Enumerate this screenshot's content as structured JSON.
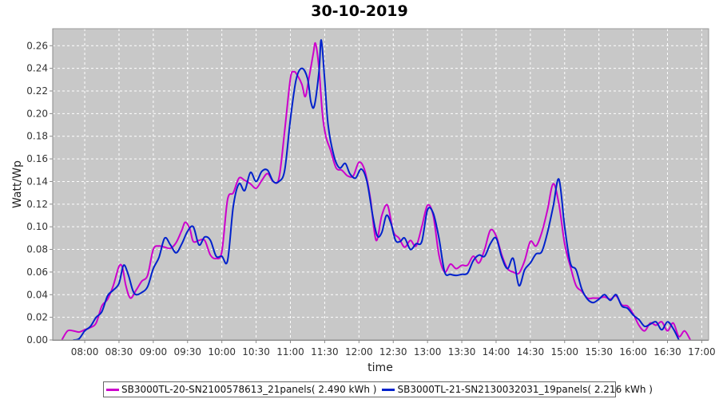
{
  "chart_data": {
    "type": "line",
    "title": "30-10-2019",
    "xlabel": "time",
    "ylabel": "Watt/Wp",
    "x_ticks": [
      "08:00",
      "08:30",
      "09:00",
      "09:30",
      "10:00",
      "10:30",
      "11:00",
      "11:30",
      "12:00",
      "12:30",
      "13:00",
      "13:30",
      "14:00",
      "14:30",
      "15:00",
      "15:30",
      "16:00",
      "16:30",
      "17:00"
    ],
    "y_ticks": [
      "0.00",
      "0.02",
      "0.04",
      "0.06",
      "0.08",
      "0.10",
      "0.12",
      "0.14",
      "0.16",
      "0.18",
      "0.20",
      "0.22",
      "0.24",
      "0.26"
    ],
    "xlim": [
      "07:32",
      "17:06"
    ],
    "ylim": [
      0,
      0.275
    ],
    "grid": true,
    "legend_position": "bottom",
    "background_color": "#c8c8c8",
    "series": [
      {
        "name": "SB3000TL-20-SN2100578613_21panels( 2.490 kWh )",
        "color": "#cc00cc",
        "points": [
          [
            "07:40",
            0.0
          ],
          [
            "07:45",
            0.008
          ],
          [
            "07:50",
            0.008
          ],
          [
            "07:55",
            0.007
          ],
          [
            "08:00",
            0.009
          ],
          [
            "08:05",
            0.011
          ],
          [
            "08:10",
            0.015
          ],
          [
            "08:15",
            0.03
          ],
          [
            "08:20",
            0.036
          ],
          [
            "08:25",
            0.048
          ],
          [
            "08:30",
            0.065
          ],
          [
            "08:33",
            0.064
          ],
          [
            "08:36",
            0.048
          ],
          [
            "08:40",
            0.037
          ],
          [
            "08:45",
            0.044
          ],
          [
            "08:50",
            0.052
          ],
          [
            "08:55",
            0.057
          ],
          [
            "09:00",
            0.08
          ],
          [
            "09:05",
            0.083
          ],
          [
            "09:10",
            0.082
          ],
          [
            "09:15",
            0.081
          ],
          [
            "09:20",
            0.086
          ],
          [
            "09:25",
            0.097
          ],
          [
            "09:28",
            0.104
          ],
          [
            "09:32",
            0.098
          ],
          [
            "09:35",
            0.087
          ],
          [
            "09:40",
            0.088
          ],
          [
            "09:45",
            0.088
          ],
          [
            "09:50",
            0.075
          ],
          [
            "09:55",
            0.072
          ],
          [
            "10:00",
            0.078
          ],
          [
            "10:05",
            0.124
          ],
          [
            "10:10",
            0.13
          ],
          [
            "10:15",
            0.143
          ],
          [
            "10:20",
            0.141
          ],
          [
            "10:25",
            0.138
          ],
          [
            "10:30",
            0.134
          ],
          [
            "10:35",
            0.141
          ],
          [
            "10:40",
            0.147
          ],
          [
            "10:45",
            0.14
          ],
          [
            "10:50",
            0.143
          ],
          [
            "10:55",
            0.185
          ],
          [
            "11:00",
            0.231
          ],
          [
            "11:03",
            0.237
          ],
          [
            "11:06",
            0.234
          ],
          [
            "11:10",
            0.226
          ],
          [
            "11:13",
            0.215
          ],
          [
            "11:16",
            0.23
          ],
          [
            "11:20",
            0.253
          ],
          [
            "11:22",
            0.262
          ],
          [
            "11:25",
            0.24
          ],
          [
            "11:28",
            0.2
          ],
          [
            "11:31",
            0.18
          ],
          [
            "11:35",
            0.168
          ],
          [
            "11:40",
            0.152
          ],
          [
            "11:45",
            0.15
          ],
          [
            "11:50",
            0.145
          ],
          [
            "11:55",
            0.145
          ],
          [
            "12:00",
            0.157
          ],
          [
            "12:05",
            0.15
          ],
          [
            "12:10",
            0.125
          ],
          [
            "12:15",
            0.088
          ],
          [
            "12:20",
            0.11
          ],
          [
            "12:25",
            0.119
          ],
          [
            "12:30",
            0.096
          ],
          [
            "12:35",
            0.09
          ],
          [
            "12:40",
            0.082
          ],
          [
            "12:45",
            0.088
          ],
          [
            "12:50",
            0.083
          ],
          [
            "12:55",
            0.1
          ],
          [
            "13:00",
            0.119
          ],
          [
            "13:05",
            0.11
          ],
          [
            "13:10",
            0.075
          ],
          [
            "13:15",
            0.06
          ],
          [
            "13:20",
            0.067
          ],
          [
            "13:25",
            0.063
          ],
          [
            "13:30",
            0.066
          ],
          [
            "13:35",
            0.066
          ],
          [
            "13:40",
            0.074
          ],
          [
            "13:45",
            0.068
          ],
          [
            "13:50",
            0.08
          ],
          [
            "13:55",
            0.097
          ],
          [
            "14:00",
            0.092
          ],
          [
            "14:05",
            0.075
          ],
          [
            "14:10",
            0.063
          ],
          [
            "14:15",
            0.06
          ],
          [
            "14:20",
            0.059
          ],
          [
            "14:25",
            0.07
          ],
          [
            "14:30",
            0.087
          ],
          [
            "14:35",
            0.083
          ],
          [
            "14:40",
            0.095
          ],
          [
            "14:45",
            0.115
          ],
          [
            "14:50",
            0.138
          ],
          [
            "14:55",
            0.12
          ],
          [
            "15:00",
            0.085
          ],
          [
            "15:05",
            0.065
          ],
          [
            "15:10",
            0.048
          ],
          [
            "15:15",
            0.043
          ],
          [
            "15:20",
            0.037
          ],
          [
            "15:25",
            0.037
          ],
          [
            "15:30",
            0.037
          ],
          [
            "15:35",
            0.038
          ],
          [
            "15:40",
            0.036
          ],
          [
            "15:45",
            0.039
          ],
          [
            "15:50",
            0.031
          ],
          [
            "15:55",
            0.03
          ],
          [
            "16:00",
            0.023
          ],
          [
            "16:05",
            0.013
          ],
          [
            "16:10",
            0.008
          ],
          [
            "16:15",
            0.015
          ],
          [
            "16:20",
            0.013
          ],
          [
            "16:25",
            0.016
          ],
          [
            "16:30",
            0.008
          ],
          [
            "16:35",
            0.015
          ],
          [
            "16:40",
            0.003
          ],
          [
            "16:45",
            0.008
          ],
          [
            "16:50",
            0.0
          ]
        ]
      },
      {
        "name": "SB3000TL-21-SN2130032031_19panels( 2.216 kWh )",
        "color": "#0022cc",
        "points": [
          [
            "07:50",
            0.0
          ],
          [
            "07:55",
            0.001
          ],
          [
            "08:00",
            0.008
          ],
          [
            "08:05",
            0.012
          ],
          [
            "08:10",
            0.02
          ],
          [
            "08:15",
            0.025
          ],
          [
            "08:20",
            0.039
          ],
          [
            "08:25",
            0.044
          ],
          [
            "08:30",
            0.05
          ],
          [
            "08:34",
            0.066
          ],
          [
            "08:38",
            0.058
          ],
          [
            "08:42",
            0.044
          ],
          [
            "08:45",
            0.04
          ],
          [
            "08:50",
            0.042
          ],
          [
            "08:55",
            0.047
          ],
          [
            "09:00",
            0.063
          ],
          [
            "09:05",
            0.073
          ],
          [
            "09:10",
            0.09
          ],
          [
            "09:15",
            0.084
          ],
          [
            "09:20",
            0.077
          ],
          [
            "09:25",
            0.085
          ],
          [
            "09:30",
            0.096
          ],
          [
            "09:35",
            0.1
          ],
          [
            "09:40",
            0.084
          ],
          [
            "09:45",
            0.091
          ],
          [
            "09:50",
            0.088
          ],
          [
            "09:55",
            0.074
          ],
          [
            "10:00",
            0.074
          ],
          [
            "10:05",
            0.07
          ],
          [
            "10:10",
            0.118
          ],
          [
            "10:15",
            0.138
          ],
          [
            "10:20",
            0.132
          ],
          [
            "10:25",
            0.148
          ],
          [
            "10:30",
            0.14
          ],
          [
            "10:35",
            0.149
          ],
          [
            "10:40",
            0.15
          ],
          [
            "10:45",
            0.14
          ],
          [
            "10:50",
            0.14
          ],
          [
            "10:55",
            0.15
          ],
          [
            "11:00",
            0.195
          ],
          [
            "11:05",
            0.23
          ],
          [
            "11:10",
            0.24
          ],
          [
            "11:15",
            0.231
          ],
          [
            "11:18",
            0.21
          ],
          [
            "11:21",
            0.207
          ],
          [
            "11:25",
            0.237
          ],
          [
            "11:27",
            0.265
          ],
          [
            "11:30",
            0.23
          ],
          [
            "11:33",
            0.19
          ],
          [
            "11:38",
            0.163
          ],
          [
            "11:43",
            0.152
          ],
          [
            "11:48",
            0.156
          ],
          [
            "11:52",
            0.147
          ],
          [
            "11:57",
            0.143
          ],
          [
            "12:02",
            0.151
          ],
          [
            "12:07",
            0.14
          ],
          [
            "12:12",
            0.11
          ],
          [
            "12:16",
            0.092
          ],
          [
            "12:20",
            0.095
          ],
          [
            "12:24",
            0.11
          ],
          [
            "12:28",
            0.103
          ],
          [
            "12:32",
            0.088
          ],
          [
            "12:36",
            0.087
          ],
          [
            "12:40",
            0.09
          ],
          [
            "12:45",
            0.08
          ],
          [
            "12:50",
            0.085
          ],
          [
            "12:55",
            0.087
          ],
          [
            "13:00",
            0.115
          ],
          [
            "13:05",
            0.112
          ],
          [
            "13:10",
            0.09
          ],
          [
            "13:15",
            0.06
          ],
          [
            "13:20",
            0.058
          ],
          [
            "13:25",
            0.057
          ],
          [
            "13:30",
            0.058
          ],
          [
            "13:35",
            0.059
          ],
          [
            "13:40",
            0.07
          ],
          [
            "13:45",
            0.075
          ],
          [
            "13:50",
            0.074
          ],
          [
            "13:55",
            0.085
          ],
          [
            "14:00",
            0.09
          ],
          [
            "14:05",
            0.073
          ],
          [
            "14:10",
            0.063
          ],
          [
            "14:15",
            0.072
          ],
          [
            "14:20",
            0.048
          ],
          [
            "14:25",
            0.062
          ],
          [
            "14:30",
            0.068
          ],
          [
            "14:35",
            0.076
          ],
          [
            "14:40",
            0.078
          ],
          [
            "14:45",
            0.095
          ],
          [
            "14:50",
            0.118
          ],
          [
            "14:55",
            0.142
          ],
          [
            "15:00",
            0.1
          ],
          [
            "15:05",
            0.068
          ],
          [
            "15:10",
            0.062
          ],
          [
            "15:15",
            0.045
          ],
          [
            "15:20",
            0.036
          ],
          [
            "15:25",
            0.033
          ],
          [
            "15:30",
            0.036
          ],
          [
            "15:35",
            0.04
          ],
          [
            "15:40",
            0.035
          ],
          [
            "15:45",
            0.04
          ],
          [
            "15:50",
            0.03
          ],
          [
            "15:55",
            0.028
          ],
          [
            "16:00",
            0.022
          ],
          [
            "16:05",
            0.018
          ],
          [
            "16:10",
            0.012
          ],
          [
            "16:15",
            0.014
          ],
          [
            "16:20",
            0.016
          ],
          [
            "16:25",
            0.009
          ],
          [
            "16:30",
            0.016
          ],
          [
            "16:35",
            0.01
          ],
          [
            "16:40",
            0.0
          ]
        ]
      }
    ]
  }
}
